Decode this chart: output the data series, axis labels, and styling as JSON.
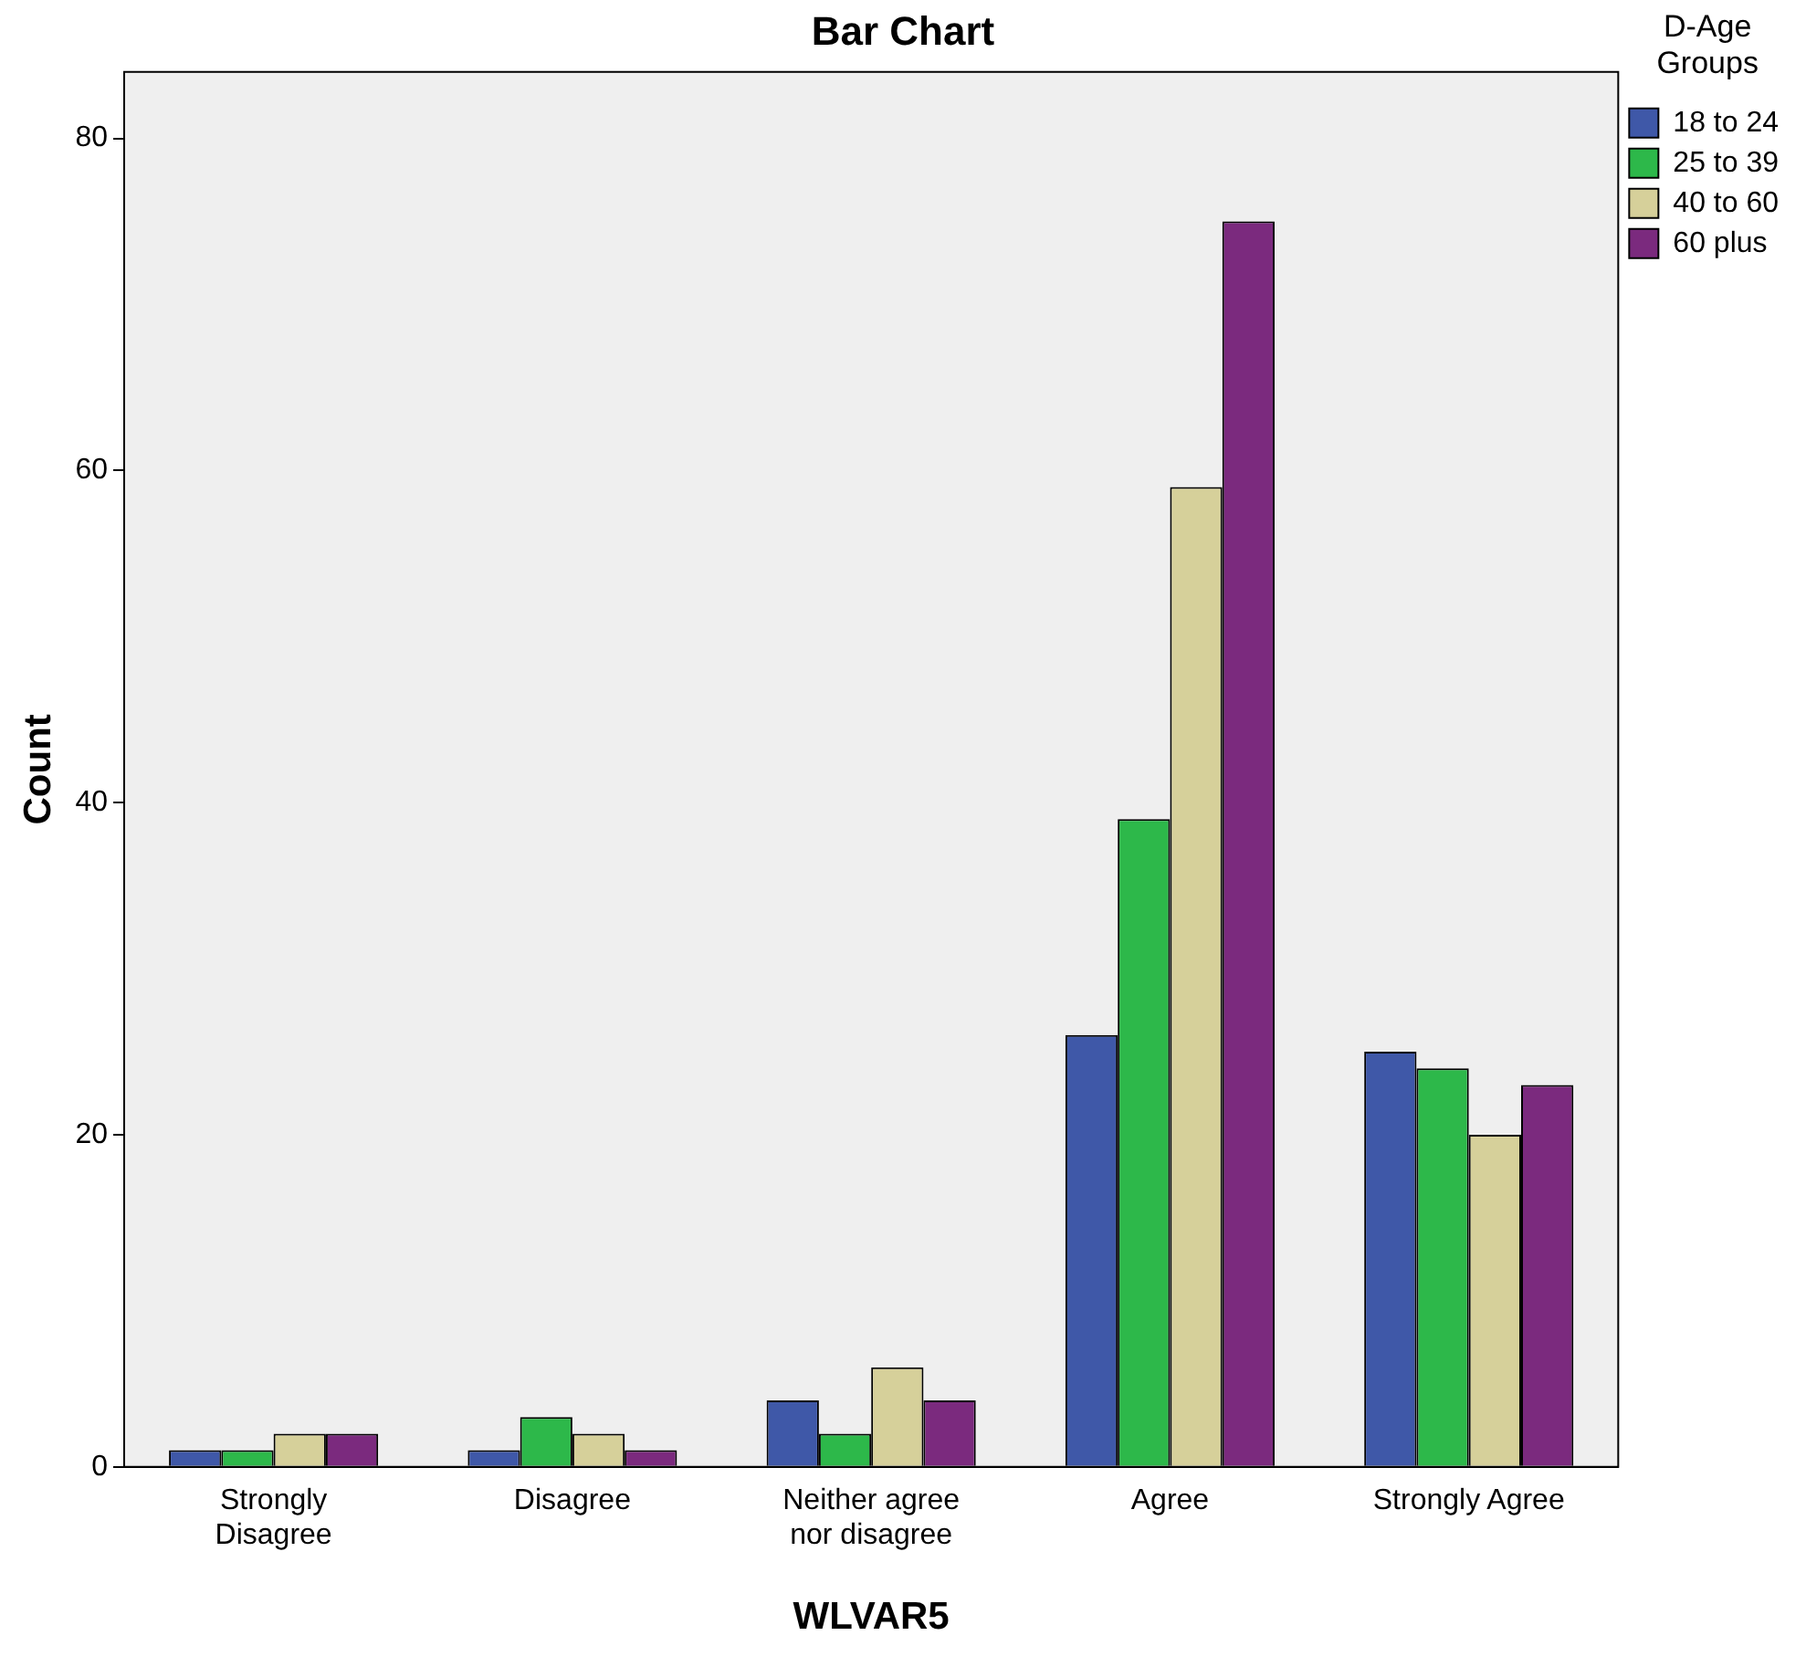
{
  "chart_data": {
    "type": "bar",
    "title": "Bar Chart",
    "xlabel": "WLVAR5",
    "ylabel": "Count",
    "legend_title": "D-Age Groups",
    "categories": [
      "Strongly\nDisagree",
      "Disagree",
      "Neither agree\nnor disagree",
      "Agree",
      "Strongly Agree"
    ],
    "series": [
      {
        "name": "18 to 24",
        "color": "#3f58a8",
        "values": [
          1,
          1,
          4,
          26,
          25
        ]
      },
      {
        "name": "25 to 39",
        "color": "#2db84a",
        "values": [
          1,
          3,
          2,
          39,
          24
        ]
      },
      {
        "name": "40 to 60",
        "color": "#d6d09a",
        "values": [
          2,
          2,
          6,
          59,
          20
        ]
      },
      {
        "name": "60 plus",
        "color": "#7b2a7e",
        "values": [
          2,
          1,
          4,
          75,
          23
        ]
      }
    ],
    "ylim": [
      0,
      84
    ],
    "yticks": [
      0,
      20,
      40,
      60,
      80
    ],
    "grid": false,
    "legend": "top right"
  }
}
